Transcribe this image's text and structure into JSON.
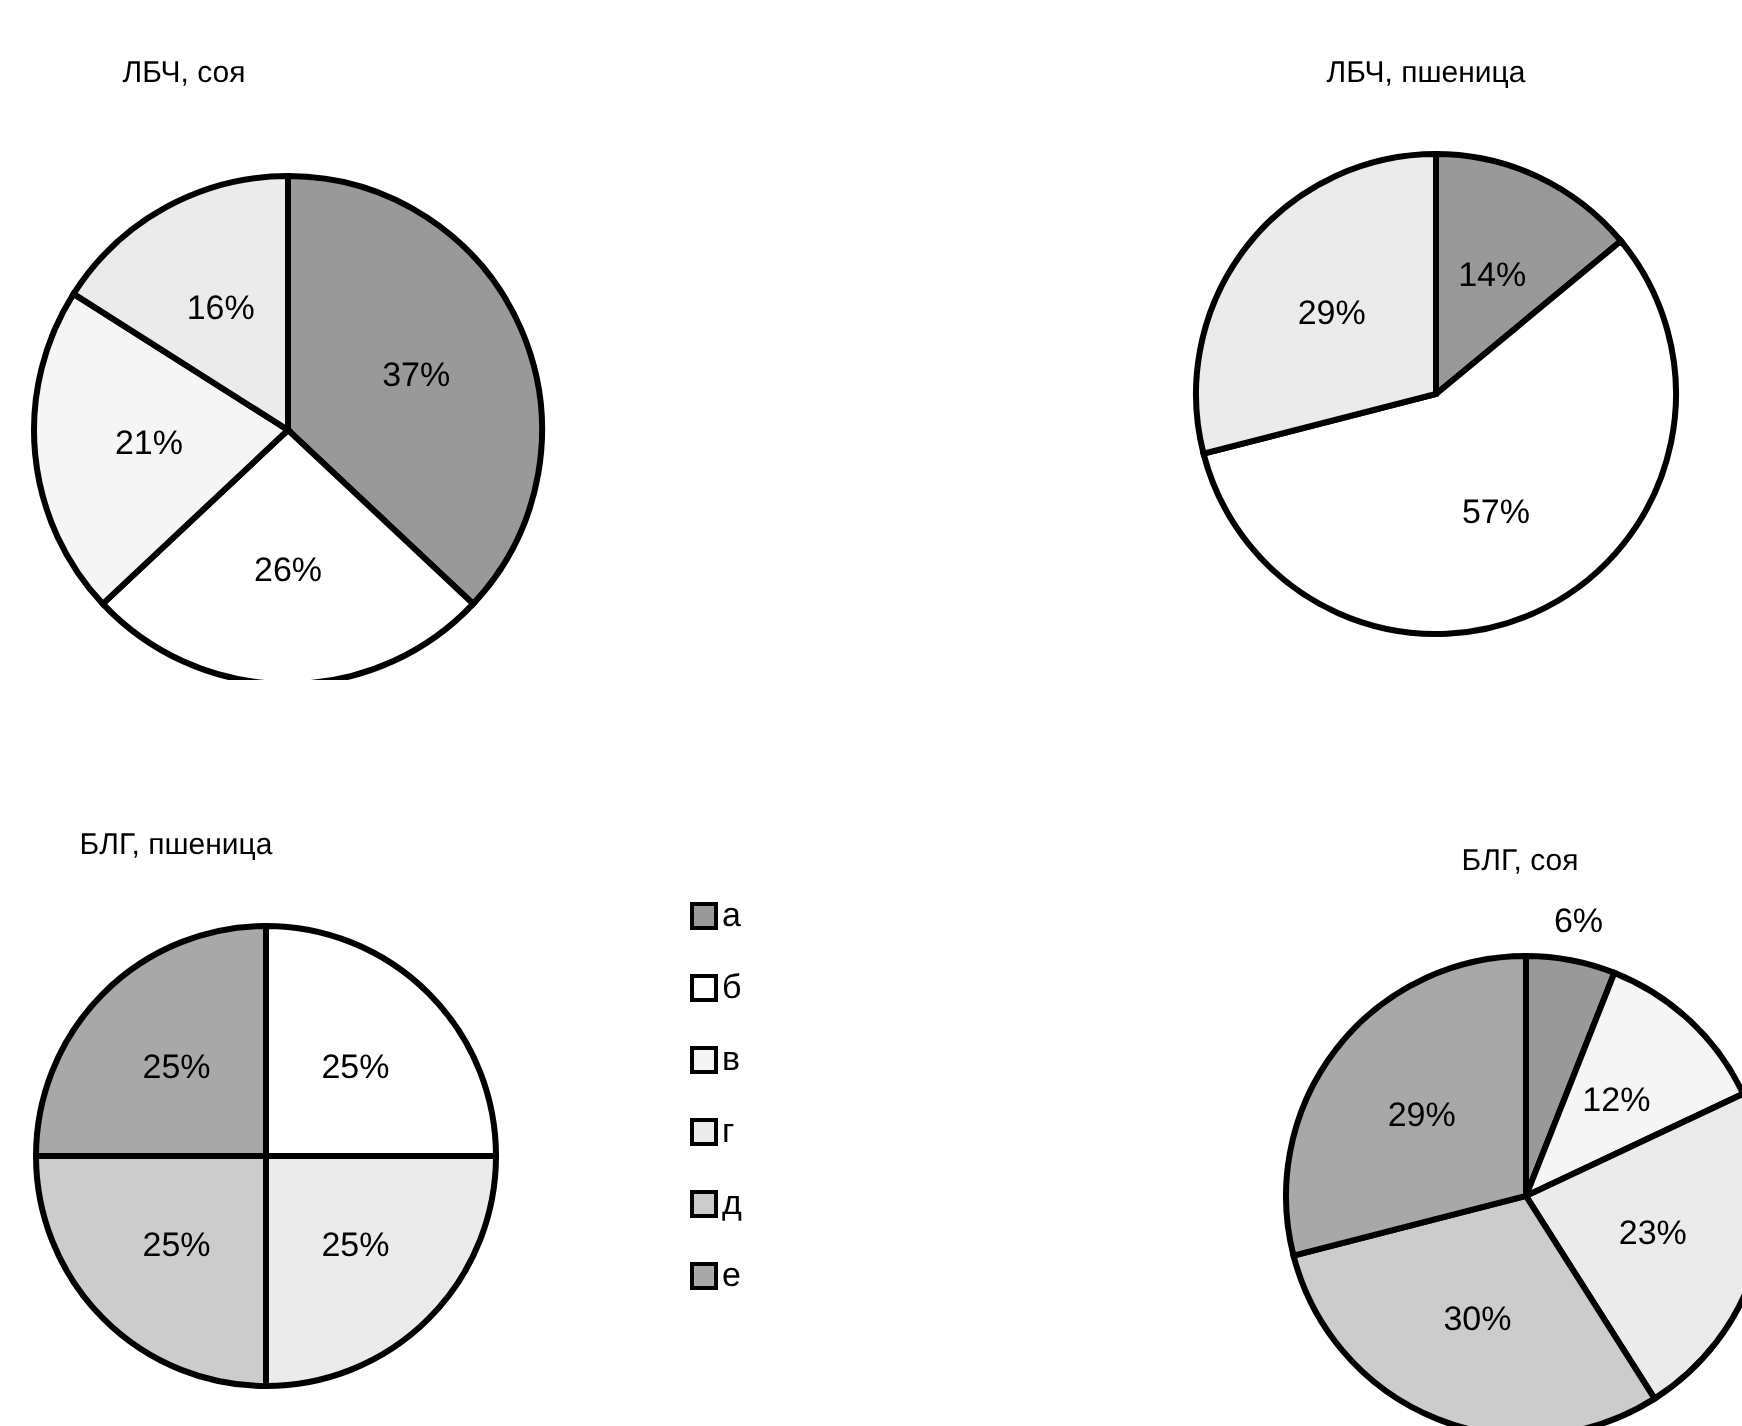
{
  "chart_data": [
    {
      "type": "pie",
      "title": "ЛБЧ, соя",
      "categories": [
        null,
        null,
        null,
        null
      ],
      "values": [
        37,
        26,
        21,
        16
      ],
      "value_labels": [
        "37%",
        "26%",
        "21%",
        "16%"
      ],
      "colors": [
        "#999999",
        "#ffffff",
        "#f5f5f5",
        "#ebebeb"
      ]
    },
    {
      "type": "pie",
      "title": "ЛБЧ, пшеница",
      "categories": [
        null,
        null,
        null
      ],
      "values": [
        14,
        57,
        29
      ],
      "value_labels": [
        "14%",
        "57%",
        "29%"
      ],
      "colors": [
        "#999999",
        "#ffffff",
        "#ebebeb"
      ]
    },
    {
      "type": "pie",
      "title": "БЛГ, пшеница",
      "categories": [
        null,
        null,
        null,
        null
      ],
      "values": [
        25,
        25,
        25,
        25
      ],
      "value_labels": [
        "25%",
        "25%",
        "25%",
        "25%"
      ],
      "colors": [
        "#ffffff",
        "#ebebeb",
        "#cccccc",
        "#a8a8a8"
      ]
    },
    {
      "type": "other",
      "categories": [
        "а",
        "б",
        "в",
        "г",
        "д",
        "е"
      ],
      "colors": [
        "#999999",
        "#ffffff",
        "#f5f5f5",
        "#ebebeb",
        "#cccccc",
        "#a8a8a8"
      ]
    },
    {
      "type": "pie",
      "title": "БЛГ, соя",
      "categories": [
        null,
        null,
        null,
        null,
        null
      ],
      "values": [
        6,
        12,
        23,
        30,
        29
      ],
      "value_labels": [
        "6%",
        "12%",
        "23%",
        "30%",
        "29%"
      ],
      "colors": [
        "#999999",
        "#f5f5f5",
        "#ebebeb",
        "#cccccc",
        "#a8a8a8"
      ]
    }
  ]
}
